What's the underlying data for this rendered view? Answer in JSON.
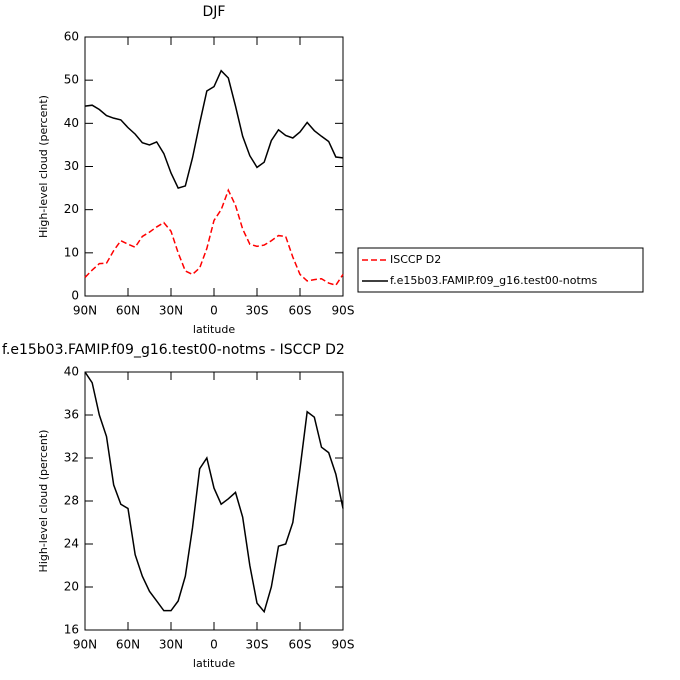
{
  "chart_data": [
    {
      "type": "line",
      "title": "DJF",
      "xlabel": "latitude",
      "ylabel": "High-level cloud (percent)",
      "x": [
        90,
        85,
        80,
        75,
        70,
        65,
        60,
        55,
        50,
        45,
        40,
        35,
        30,
        25,
        20,
        15,
        10,
        5,
        0,
        -5,
        -10,
        -15,
        -20,
        -25,
        -30,
        -35,
        -40,
        -45,
        -50,
        -55,
        -60,
        -65,
        -70,
        -75,
        -80,
        -85,
        -90
      ],
      "xlim": [
        90,
        -90
      ],
      "xticks": [
        {
          "value": 90,
          "label": "90N"
        },
        {
          "value": 60,
          "label": "60N"
        },
        {
          "value": 30,
          "label": "30N"
        },
        0,
        {
          "value": -30,
          "label": "30S"
        },
        {
          "value": -60,
          "label": "60S"
        },
        {
          "value": -90,
          "label": "90S"
        }
      ],
      "ylim": [
        0,
        60
      ],
      "yticks": [
        0,
        10,
        20,
        30,
        40,
        50,
        60
      ],
      "legend": "right",
      "series": [
        {
          "name": "ISCCP D2",
          "color": "#ff0000",
          "dash": true,
          "values": [
            4.3,
            6,
            7.5,
            7.6,
            10.5,
            12.8,
            12,
            11.3,
            13.8,
            14.8,
            16,
            17,
            15,
            10,
            5.8,
            5,
            6.5,
            11,
            17.5,
            20,
            24.5,
            21,
            15.5,
            12,
            11.5,
            11.8,
            12.8,
            14,
            13.8,
            9,
            5,
            3.5,
            3.8,
            4,
            3,
            2.5,
            5
          ]
        },
        {
          "name": "f.e15b03.FAMIP.f09_g16.test00-notms",
          "color": "#000000",
          "dash": false,
          "values": [
            44,
            44.2,
            43.2,
            41.8,
            41.2,
            40.8,
            39,
            37.5,
            35.5,
            35,
            35.7,
            33,
            28.5,
            25,
            25.5,
            32,
            40,
            47.5,
            48.5,
            52.2,
            50.5,
            44,
            37,
            32.5,
            29.8,
            31,
            36,
            38.5,
            37.2,
            36.6,
            38,
            40.2,
            38.3,
            37,
            35.8,
            32.2,
            32
          ]
        }
      ]
    },
    {
      "type": "line",
      "title": "f.e15b03.FAMIP.f09_g16.test00-notms - ISCCP D2",
      "xlabel": "latitude",
      "ylabel": "High-level cloud (percent)",
      "x": [
        90,
        85,
        80,
        75,
        70,
        65,
        60,
        55,
        50,
        45,
        40,
        35,
        30,
        25,
        20,
        15,
        10,
        5,
        0,
        -5,
        -10,
        -15,
        -20,
        -25,
        -30,
        -35,
        -40,
        -45,
        -50,
        -55,
        -60,
        -65,
        -70,
        -75,
        -80,
        -85,
        -90
      ],
      "xlim": [
        90,
        -90
      ],
      "xticks": [
        {
          "value": 90,
          "label": "90N"
        },
        {
          "value": 60,
          "label": "60N"
        },
        {
          "value": 30,
          "label": "30N"
        },
        0,
        {
          "value": -30,
          "label": "30S"
        },
        {
          "value": -60,
          "label": "60S"
        },
        {
          "value": -90,
          "label": "90S"
        }
      ],
      "ylim": [
        16,
        40
      ],
      "yticks": [
        16,
        20,
        24,
        28,
        32,
        36,
        40
      ],
      "series": [
        {
          "color": "#000000",
          "dash": false,
          "values": [
            40,
            39,
            36,
            34,
            29.5,
            27.7,
            27.3,
            23,
            21,
            19.6,
            18.7,
            17.8,
            17.8,
            18.7,
            21,
            25.5,
            31,
            32,
            29.2,
            27.7,
            28.2,
            28.8,
            26.5,
            22,
            18.5,
            17.7,
            20,
            23.8,
            24,
            26,
            31,
            36.3,
            35.8,
            33,
            32.5,
            30.5,
            27.3
          ]
        }
      ]
    }
  ]
}
